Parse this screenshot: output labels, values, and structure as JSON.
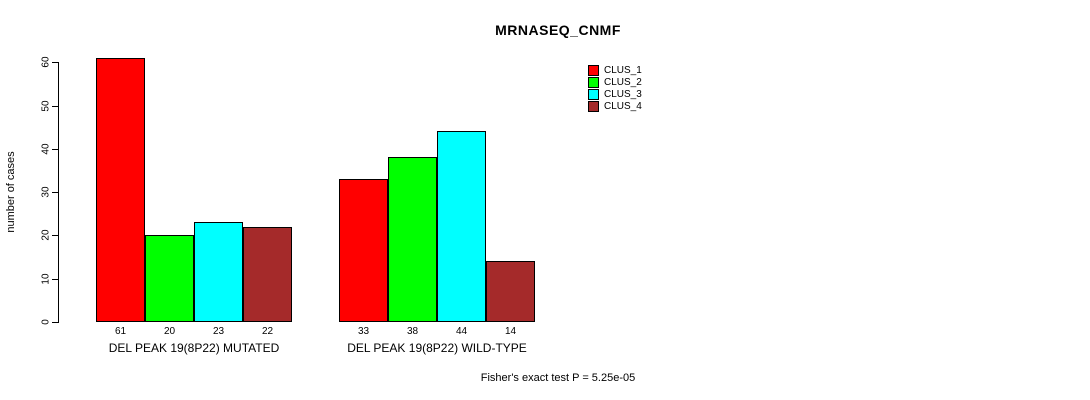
{
  "chart": {
    "title": "MRNASEQ_CNMF",
    "footer": "Fisher's exact test P = 5.25e-05"
  },
  "chart_data": {
    "type": "bar",
    "title": "MRNASEQ_CNMF",
    "ylabel": "number of cases",
    "xlabel": "",
    "ylim": [
      0,
      60
    ],
    "yticks": [
      0,
      10,
      20,
      30,
      40,
      50,
      60
    ],
    "grid": false,
    "legend_position": "top-right",
    "bar_value_labels": true,
    "categories": [
      "DEL PEAK 19(8P22) MUTATED",
      "DEL PEAK 19(8P22) WILD-TYPE"
    ],
    "series": [
      {
        "name": "CLUS_1",
        "color": "#FF0000",
        "values": [
          61,
          33
        ]
      },
      {
        "name": "CLUS_2",
        "color": "#00FF00",
        "values": [
          20,
          38
        ]
      },
      {
        "name": "CLUS_3",
        "color": "#00FFFF",
        "values": [
          23,
          44
        ]
      },
      {
        "name": "CLUS_4",
        "color": "#A52A2A",
        "values": [
          22,
          14
        ]
      }
    ],
    "annotation": "Fisher's exact test P = 5.25e-05"
  }
}
